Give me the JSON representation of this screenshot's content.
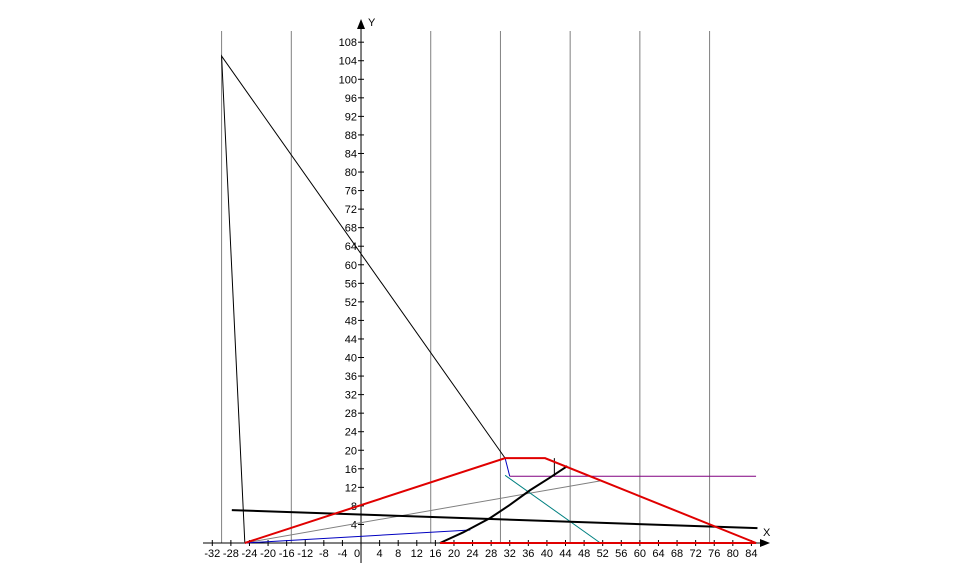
{
  "chart_data": {
    "type": "line",
    "x_label": "X",
    "y_label": "Y",
    "xlim": [
      -34,
      88
    ],
    "ylim": [
      0,
      113
    ],
    "xticks": [
      -32,
      -28,
      -24,
      -20,
      -16,
      -12,
      -8,
      -4,
      0,
      4,
      8,
      12,
      16,
      20,
      24,
      28,
      32,
      36,
      40,
      44,
      48,
      52,
      56,
      60,
      64,
      68,
      72,
      76,
      80,
      84
    ],
    "yticks": [
      4,
      8,
      12,
      16,
      20,
      24,
      28,
      32,
      36,
      40,
      44,
      48,
      52,
      56,
      60,
      64,
      68,
      72,
      76,
      80,
      84,
      88,
      92,
      96,
      100,
      104,
      108
    ],
    "xgrid": [
      -30,
      -15,
      15,
      30,
      45,
      60,
      75
    ],
    "axis_color": "#000000",
    "grid_color": "#808080",
    "series": [
      {
        "color": "#000000",
        "width": 1,
        "x": [
          -25,
          -30,
          31
        ],
        "values": [
          0,
          105,
          18.3
        ]
      },
      {
        "color": "#808080",
        "width": 1,
        "x": [
          -25,
          51.5
        ],
        "values": [
          0,
          13.4
        ]
      },
      {
        "color": "#0000c0",
        "width": 1,
        "x": [
          -25,
          23.5
        ],
        "values": [
          0,
          2.8
        ]
      },
      {
        "color": "#0000c0",
        "width": 1,
        "x": [
          31,
          32
        ],
        "values": [
          18.3,
          14.4
        ]
      },
      {
        "color": "#008080",
        "width": 1,
        "x": [
          31,
          51.5
        ],
        "values": [
          14.6,
          0
        ]
      },
      {
        "color": "#800080",
        "width": 1,
        "x": [
          32,
          85
        ],
        "values": [
          14.4,
          14.4
        ]
      },
      {
        "color": "#000000",
        "width": 1,
        "x": [
          41.6,
          41.6
        ],
        "values": [
          18.3,
          14.4
        ]
      },
      {
        "color": "#000000",
        "width": 2,
        "x": [
          -27.8,
          85.3
        ],
        "values": [
          7.1,
          3.2
        ]
      },
      {
        "color": "#000000",
        "width": 2,
        "x": [
          17,
          22,
          27.8,
          32,
          36.4,
          40.5,
          44.4
        ],
        "values": [
          0,
          2.3,
          5.4,
          8.2,
          11.4,
          14,
          16.6
        ]
      },
      {
        "color": "#e00000",
        "width": 2,
        "x": [
          -25,
          31,
          39.6,
          85
        ],
        "values": [
          0,
          18.3,
          18.3,
          0
        ]
      },
      {
        "color": "#e00000",
        "width": 2,
        "x": [
          17,
          85
        ],
        "values": [
          0,
          0
        ]
      }
    ]
  }
}
